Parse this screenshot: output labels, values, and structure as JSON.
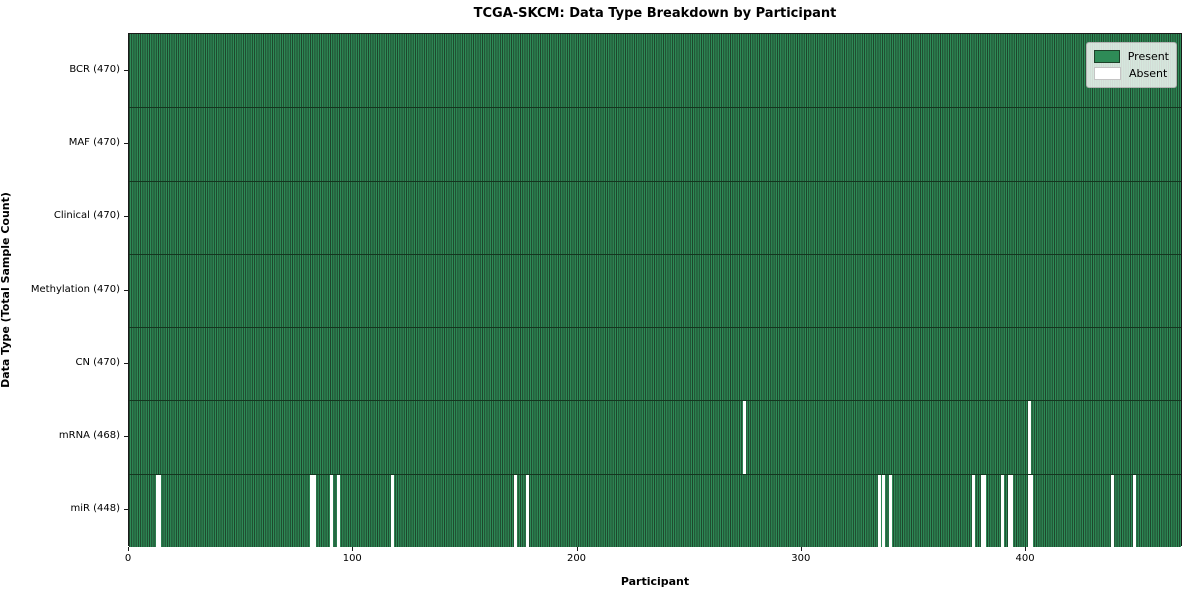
{
  "title": "TCGA-SKCM: Data Type Breakdown by Participant",
  "x_axis_label": "Participant",
  "y_axis_label": "Data Type (Total Sample Count)",
  "legend": {
    "present_label": "Present",
    "absent_label": "Absent"
  },
  "colors": {
    "present": "#2e8b57",
    "bar_edge": "#1d4129",
    "absent": "#ffffff",
    "row_separator": "#14361f",
    "spine": "#1a1a1a"
  },
  "chart_data": {
    "type": "heatmap",
    "title": "TCGA-SKCM: Data Type Breakdown by Participant",
    "xlabel": "Participant",
    "ylabel": "Data Type (Total Sample Count)",
    "legend_entries": [
      "Present",
      "Absent"
    ],
    "legend_position": "upper right",
    "total_participants": 470,
    "x_ticks": [
      0,
      100,
      200,
      300,
      400
    ],
    "xlim": [
      0,
      470
    ],
    "rows": [
      {
        "label": "BCR (470)",
        "data_type": "BCR",
        "present_count": 470,
        "absent_participants": []
      },
      {
        "label": "MAF (470)",
        "data_type": "MAF",
        "present_count": 470,
        "absent_participants": []
      },
      {
        "label": "Clinical (470)",
        "data_type": "Clinical",
        "present_count": 470,
        "absent_participants": []
      },
      {
        "label": "Methylation (470)",
        "data_type": "Methylation",
        "present_count": 470,
        "absent_participants": []
      },
      {
        "label": "CN (470)",
        "data_type": "CN",
        "present_count": 470,
        "absent_participants": []
      },
      {
        "label": "mRNA (468)",
        "data_type": "mRNA",
        "present_count": 468,
        "absent_participants": [
          274,
          401
        ]
      },
      {
        "label": "miR (448)",
        "data_type": "miR",
        "present_count": 448,
        "absent_participants": [
          12,
          13,
          81,
          82,
          90,
          93,
          117,
          172,
          177,
          334,
          336,
          339,
          376,
          380,
          381,
          389,
          392,
          393,
          401,
          402,
          438,
          448
        ]
      }
    ]
  }
}
